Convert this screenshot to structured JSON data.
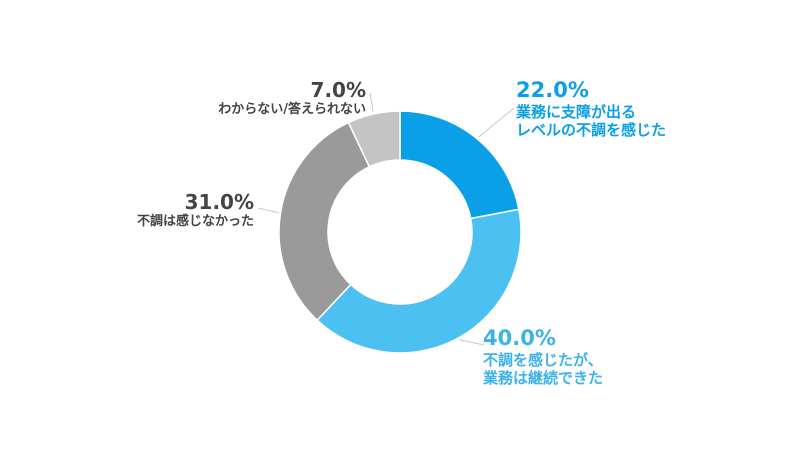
{
  "chart_data": {
    "type": "pie",
    "variant": "donut",
    "categories": [
      "業務に支障が出るレベルの不調を感じた",
      "不調を感じたが、業務は継続できた",
      "不調は感じなかった",
      "わからない/答えられない"
    ],
    "values": [
      22.0,
      40.0,
      31.0,
      7.0
    ],
    "colors": [
      "#0a9fe6",
      "#4cc0f0",
      "#9a9a9a",
      "#c4c4c4"
    ],
    "legend": "none",
    "labels": [
      {
        "pct": "22.0%",
        "line1": "業務に支障が出る",
        "line2": "レベルの不調を感じた",
        "color": "#0a9fe6"
      },
      {
        "pct": "40.0%",
        "line1": "不調を感じたが、",
        "line2": "業務は継続できた",
        "color": "#3bb3ea"
      },
      {
        "pct": "31.0%",
        "line1": "不調は感じなかった",
        "color": "#444444"
      },
      {
        "pct": "7.0%",
        "line1": "わからない/答えられない",
        "color": "#444444"
      }
    ]
  }
}
